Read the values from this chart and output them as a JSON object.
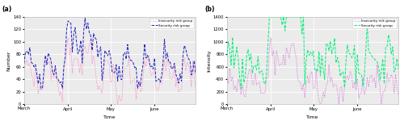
{
  "subplot_a": {
    "label": "(a)",
    "ylabel": "Number",
    "ylim": [
      0,
      140
    ],
    "yticks": [
      0,
      20,
      40,
      60,
      80,
      100,
      120,
      140
    ],
    "line1_label": "Insecurity risk group",
    "line1_color": "#FF69B4",
    "line1_style": ":",
    "line2_label": "Security risk group",
    "line2_color": "#2222BB",
    "line2_style": "--"
  },
  "subplot_b": {
    "label": "(b)",
    "ylabel": "Intensity",
    "ylim": [
      0,
      1400
    ],
    "yticks": [
      0,
      200,
      400,
      600,
      800,
      1000,
      1200,
      1400
    ],
    "line1_label": "Insecurity risk group",
    "line1_color": "#CC55CC",
    "line1_style": ":",
    "line2_label": "Security risk group",
    "line2_color": "#00EE77",
    "line2_style": "--"
  },
  "xlabel": "Time",
  "xtick_labels": [
    "March",
    "April",
    "May",
    "June"
  ],
  "background_color": "#ebebeb",
  "n_points": 122
}
